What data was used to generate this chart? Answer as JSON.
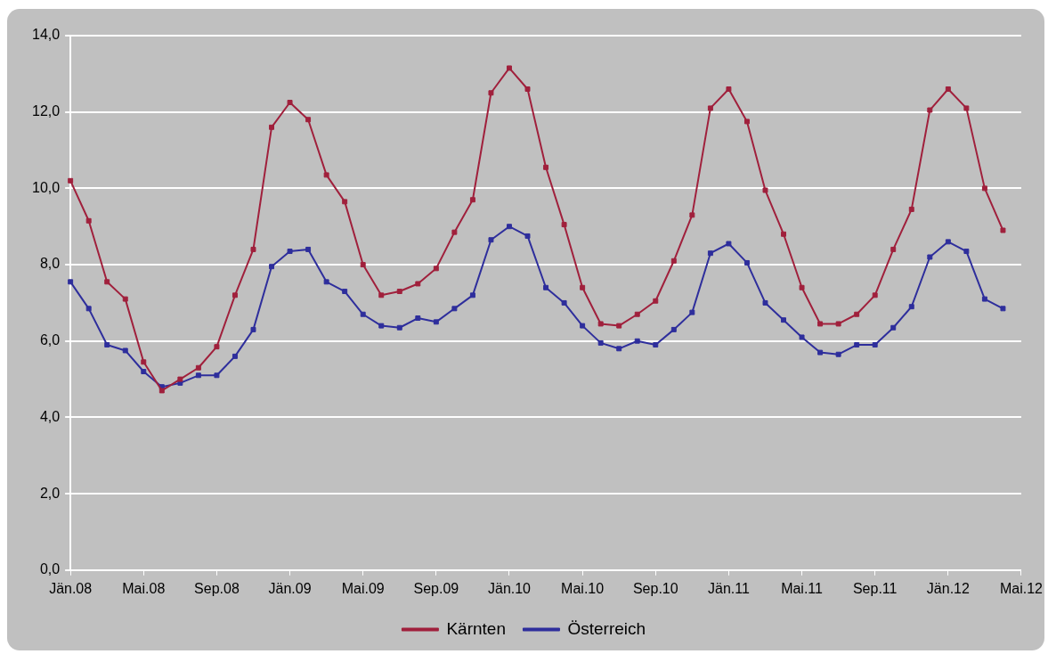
{
  "chart_data": {
    "type": "line",
    "categories": [
      "Jän.08",
      null,
      null,
      null,
      "Mai.08",
      null,
      null,
      null,
      "Sep.08",
      null,
      null,
      null,
      "Jän.09",
      null,
      null,
      null,
      "Mai.09",
      null,
      null,
      null,
      "Sep.09",
      null,
      null,
      null,
      "Jän.10",
      null,
      null,
      null,
      "Mai.10",
      null,
      null,
      null,
      "Sep.10",
      null,
      null,
      null,
      "Jän.11",
      null,
      null,
      null,
      "Mai.11",
      null,
      null,
      null,
      "Sep.11",
      null,
      null,
      null,
      "Jän.12",
      null,
      null,
      null,
      "Mai.12"
    ],
    "series": [
      {
        "name": "Kärnten",
        "color": "#a0203c",
        "values": [
          10.2,
          9.15,
          7.55,
          7.1,
          5.45,
          4.7,
          5.0,
          5.3,
          5.85,
          7.2,
          8.4,
          11.6,
          12.25,
          11.8,
          10.35,
          9.65,
          8.0,
          7.2,
          7.3,
          7.5,
          7.9,
          8.85,
          9.7,
          12.5,
          13.15,
          12.6,
          10.55,
          9.05,
          7.4,
          6.45,
          6.4,
          6.7,
          7.05,
          8.1,
          9.3,
          12.1,
          12.6,
          11.75,
          9.95,
          8.8,
          7.4,
          6.45,
          6.45,
          6.7,
          7.2,
          8.4,
          9.45,
          12.05,
          12.6,
          12.1,
          10.0,
          8.9,
          null
        ]
      },
      {
        "name": "Österreich",
        "color": "#2e2e9c",
        "values": [
          7.55,
          6.85,
          5.9,
          5.75,
          5.2,
          4.8,
          4.9,
          5.1,
          5.1,
          5.6,
          6.3,
          7.95,
          8.35,
          8.4,
          7.55,
          7.3,
          6.7,
          6.4,
          6.35,
          6.6,
          6.5,
          6.85,
          7.2,
          8.65,
          9.0,
          8.75,
          7.4,
          7.0,
          6.4,
          5.95,
          5.8,
          6.0,
          5.9,
          6.3,
          6.75,
          8.3,
          8.55,
          8.05,
          7.0,
          6.55,
          6.1,
          5.7,
          5.65,
          5.9,
          5.9,
          6.35,
          6.9,
          8.2,
          8.6,
          8.35,
          7.1,
          6.85,
          null
        ]
      }
    ],
    "ylim": [
      0,
      14
    ],
    "yticks": [
      {
        "value": 0,
        "label": "0,0"
      },
      {
        "value": 2,
        "label": "2,0"
      },
      {
        "value": 4,
        "label": "4,0"
      },
      {
        "value": 6,
        "label": "6,0"
      },
      {
        "value": 8,
        "label": "8,0"
      },
      {
        "value": 10,
        "label": "10,0"
      },
      {
        "value": 12,
        "label": "12,0"
      },
      {
        "value": 14,
        "label": "14,0"
      }
    ],
    "grid": "y",
    "legend": "bottom",
    "marker": "square",
    "line_style": "solid"
  }
}
